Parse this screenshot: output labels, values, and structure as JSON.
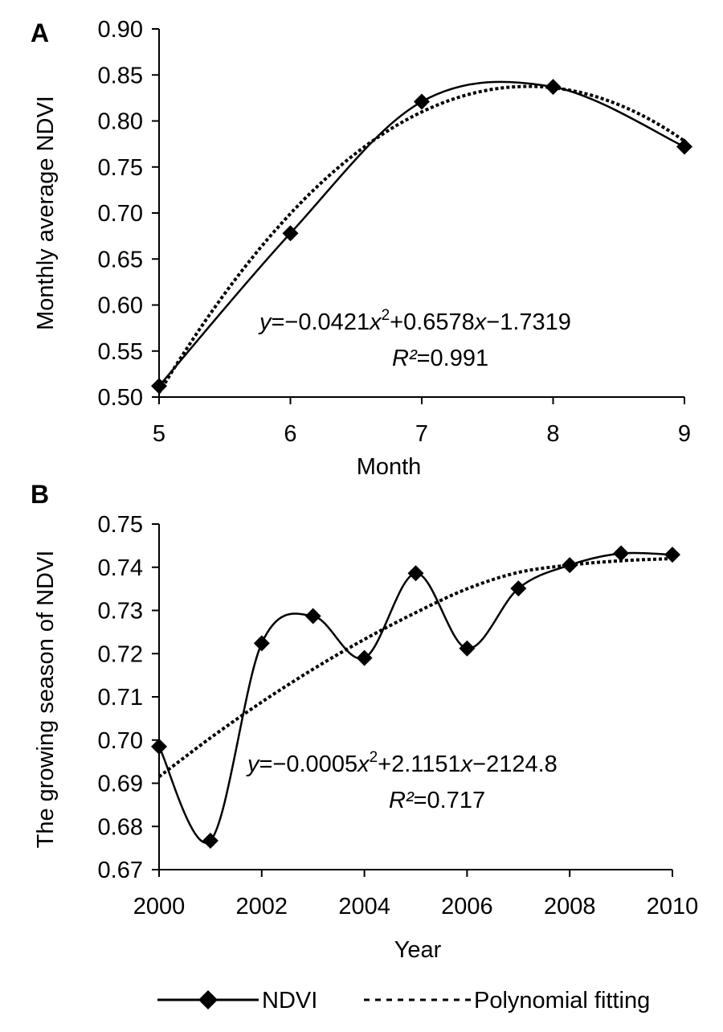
{
  "chart_data": [
    {
      "panel_label": "A",
      "type": "line",
      "xlabel": "Month",
      "ylabel": "Monthly average NDVI",
      "xlim": [
        5,
        9
      ],
      "ylim": [
        0.5,
        0.9
      ],
      "x_ticks": [
        5,
        6,
        7,
        8,
        9
      ],
      "x_tick_labels": [
        "5",
        "6",
        "7",
        "8",
        "9"
      ],
      "y_ticks": [
        0.5,
        0.55,
        0.6,
        0.65,
        0.7,
        0.75,
        0.8,
        0.85,
        0.9
      ],
      "y_tick_labels": [
        "0.50",
        "0.55",
        "0.60",
        "0.65",
        "0.70",
        "0.75",
        "0.80",
        "0.85",
        "0.90"
      ],
      "grid": false,
      "series": [
        {
          "name": "NDVI",
          "style": "solid-smooth",
          "marker": "diamond",
          "x": [
            5,
            6,
            7,
            8,
            9
          ],
          "y": [
            0.512,
            0.678,
            0.821,
            0.837,
            0.772
          ]
        },
        {
          "name": "Polynomial fitting",
          "style": "dotted",
          "marker": "none",
          "coefficients": {
            "a": -0.0421,
            "b": 0.6578,
            "c": -1.7319
          }
        }
      ],
      "equation": {
        "y": "y",
        "parts": [
          "=−0.0421",
          "x",
          "2",
          "+0.6578",
          "x",
          "−1.7319"
        ],
        "r2_label": "R²",
        "r2_value": "=0.991"
      }
    },
    {
      "panel_label": "B",
      "type": "line",
      "xlabel": "Year",
      "ylabel": "The growing season of NDVI",
      "xlim": [
        2000,
        2010
      ],
      "ylim": [
        0.67,
        0.75
      ],
      "x_ticks": [
        2000,
        2002,
        2004,
        2006,
        2008,
        2010
      ],
      "x_tick_labels": [
        "2000",
        "2002",
        "2004",
        "2006",
        "2008",
        "2010"
      ],
      "y_ticks": [
        0.67,
        0.68,
        0.69,
        0.7,
        0.71,
        0.72,
        0.73,
        0.74,
        0.75
      ],
      "y_tick_labels": [
        "0.67",
        "0.68",
        "0.69",
        "0.70",
        "0.71",
        "0.72",
        "0.73",
        "0.74",
        "0.75"
      ],
      "grid": false,
      "series": [
        {
          "name": "NDVI",
          "style": "solid-smooth",
          "marker": "diamond",
          "x": [
            2000,
            2001,
            2002,
            2003,
            2004,
            2005,
            2006,
            2007,
            2008,
            2009,
            2010
          ],
          "y": [
            0.6985,
            0.6767,
            0.7224,
            0.7287,
            0.719,
            0.7386,
            0.7212,
            0.7351,
            0.7405,
            0.7432,
            0.7429
          ]
        },
        {
          "name": "Polynomial fitting",
          "style": "dotted",
          "marker": "none",
          "x": [
            2000,
            2001,
            2002,
            2003,
            2004,
            2005,
            2006,
            2007,
            2008,
            2009,
            2010
          ],
          "y": [
            0.6915,
            0.7005,
            0.7088,
            0.7164,
            0.7233,
            0.7295,
            0.735,
            0.7388,
            0.7405,
            0.7415,
            0.742
          ]
        }
      ],
      "equation": {
        "y": "y",
        "parts": [
          "=−0.0005",
          "x",
          "2",
          "+2.1151",
          "x",
          "−2124.8"
        ],
        "r2_label": "R²",
        "r2_value": "=0.717"
      }
    }
  ],
  "legend": {
    "placement": "bottom-center",
    "items": [
      {
        "label": "NDVI",
        "style": "solid",
        "marker": "diamond"
      },
      {
        "label": "Polynomial fitting",
        "style": "dotted",
        "marker": "none"
      }
    ]
  }
}
